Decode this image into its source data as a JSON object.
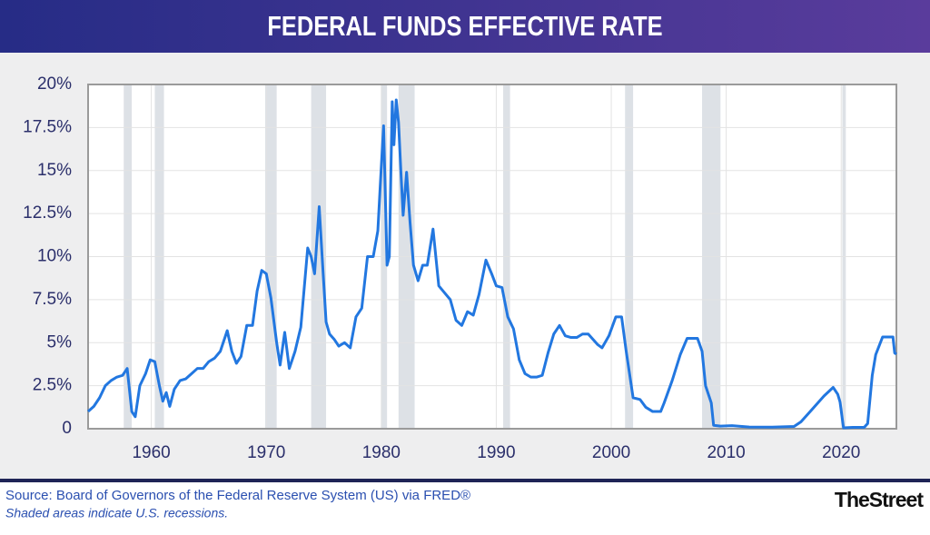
{
  "chart_data": {
    "type": "line",
    "title": "FEDERAL FUNDS EFFECTIVE RATE",
    "source": "Source: Board of Governors of the Federal Reserve System (US) via FRED®",
    "note": "Shaded areas indicate U.S. recessions.",
    "color": "#2277e0",
    "grid": true,
    "xlim": [
      1954.5,
      2024.8
    ],
    "ylim": [
      0,
      20
    ],
    "xticks": [
      1960,
      1970,
      1980,
      1990,
      2000,
      2010,
      2020
    ],
    "yticks": [
      0,
      {
        "value": 2.5,
        "label": "2.5%"
      },
      {
        "value": 5,
        "label": "5%"
      },
      {
        "value": 7.5,
        "label": "7.5%"
      },
      {
        "value": 10,
        "label": "10%"
      },
      {
        "value": 12.5,
        "label": "12.5%"
      },
      {
        "value": 15,
        "label": "15%"
      },
      {
        "value": 17.5,
        "label": "17.5%"
      },
      {
        "value": 20,
        "label": "20%"
      }
    ],
    "recessions": [
      [
        1957.6,
        1958.3
      ],
      [
        1960.3,
        1961.1
      ],
      [
        1969.9,
        1970.9
      ],
      [
        1973.9,
        1975.2
      ],
      [
        1980.0,
        1980.5
      ],
      [
        1981.5,
        1982.9
      ],
      [
        1990.6,
        1991.2
      ],
      [
        2001.2,
        2001.9
      ],
      [
        2007.9,
        2009.5
      ],
      [
        2020.1,
        2020.4
      ]
    ],
    "x": [
      1954.5,
      1955.0,
      1955.5,
      1956.0,
      1956.5,
      1957.0,
      1957.5,
      1957.9,
      1958.3,
      1958.6,
      1959.0,
      1959.5,
      1959.9,
      1960.3,
      1960.7,
      1961.0,
      1961.3,
      1961.6,
      1962.0,
      1962.5,
      1963.0,
      1963.5,
      1964.0,
      1964.5,
      1965.0,
      1965.5,
      1966.0,
      1966.6,
      1967.0,
      1967.4,
      1967.8,
      1968.3,
      1968.8,
      1969.2,
      1969.6,
      1970.0,
      1970.4,
      1970.9,
      1971.2,
      1971.6,
      1972.0,
      1972.5,
      1973.0,
      1973.6,
      1973.9,
      1974.2,
      1974.6,
      1974.9,
      1975.2,
      1975.5,
      1975.9,
      1976.3,
      1976.8,
      1977.3,
      1977.8,
      1978.3,
      1978.8,
      1979.3,
      1979.7,
      1979.9,
      1980.2,
      1980.5,
      1980.7,
      1980.95,
      1981.1,
      1981.3,
      1981.5,
      1981.7,
      1981.9,
      1982.2,
      1982.5,
      1982.8,
      1983.2,
      1983.6,
      1984.0,
      1984.5,
      1985.0,
      1985.5,
      1986.0,
      1986.5,
      1987.0,
      1987.5,
      1988.0,
      1988.5,
      1989.1,
      1989.6,
      1990.0,
      1990.5,
      1991.0,
      1991.5,
      1992.0,
      1992.5,
      1993.0,
      1993.5,
      1994.0,
      1994.5,
      1995.0,
      1995.5,
      1996.0,
      1996.5,
      1997.0,
      1997.5,
      1998.0,
      1998.8,
      1999.2,
      1999.8,
      2000.4,
      2000.9,
      2001.3,
      2001.9,
      2002.5,
      2003.0,
      2003.6,
      2004.3,
      2004.6,
      2005.3,
      2006.0,
      2006.6,
      2007.5,
      2007.9,
      2008.2,
      2008.7,
      2008.9,
      2009.5,
      2010.5,
      2012.0,
      2014.0,
      2015.9,
      2016.5,
      2017.5,
      2018.5,
      2019.3,
      2019.7,
      2019.9,
      2020.2,
      2021.0,
      2022.0,
      2022.3,
      2022.7,
      2023.0,
      2023.6,
      2024.5,
      2024.65,
      2024.8
    ],
    "values": [
      1.0,
      1.3,
      1.8,
      2.5,
      2.8,
      3.0,
      3.1,
      3.5,
      1.0,
      0.7,
      2.5,
      3.2,
      4.0,
      3.9,
      2.5,
      1.6,
      2.1,
      1.3,
      2.3,
      2.8,
      2.9,
      3.2,
      3.5,
      3.5,
      3.9,
      4.1,
      4.5,
      5.7,
      4.5,
      3.8,
      4.2,
      6.0,
      6.0,
      8.0,
      9.2,
      9.0,
      7.6,
      5.0,
      3.7,
      5.6,
      3.5,
      4.5,
      5.9,
      10.5,
      10.0,
      9.0,
      12.9,
      9.5,
      6.2,
      5.5,
      5.2,
      4.8,
      5.0,
      4.7,
      6.5,
      7.0,
      10.0,
      10.0,
      11.5,
      14.0,
      17.6,
      9.5,
      10.0,
      19.0,
      16.5,
      19.1,
      17.8,
      15.0,
      12.4,
      14.9,
      12.0,
      9.5,
      8.6,
      9.5,
      9.5,
      11.6,
      8.3,
      7.9,
      7.5,
      6.3,
      6.0,
      6.8,
      6.6,
      7.8,
      9.8,
      9.0,
      8.3,
      8.2,
      6.5,
      5.8,
      4.0,
      3.2,
      3.0,
      3.0,
      3.1,
      4.4,
      5.5,
      6.0,
      5.4,
      5.3,
      5.3,
      5.5,
      5.5,
      4.9,
      4.7,
      5.4,
      6.5,
      6.5,
      4.5,
      1.8,
      1.7,
      1.25,
      1.0,
      1.0,
      1.5,
      2.8,
      4.3,
      5.25,
      5.25,
      4.5,
      2.5,
      1.5,
      0.2,
      0.15,
      0.18,
      0.1,
      0.09,
      0.13,
      0.4,
      1.15,
      1.9,
      2.4,
      2.0,
      1.55,
      0.05,
      0.08,
      0.08,
      0.3,
      3.1,
      4.3,
      5.33,
      5.33,
      4.4,
      4.33
    ]
  },
  "brand": "TheStreet"
}
